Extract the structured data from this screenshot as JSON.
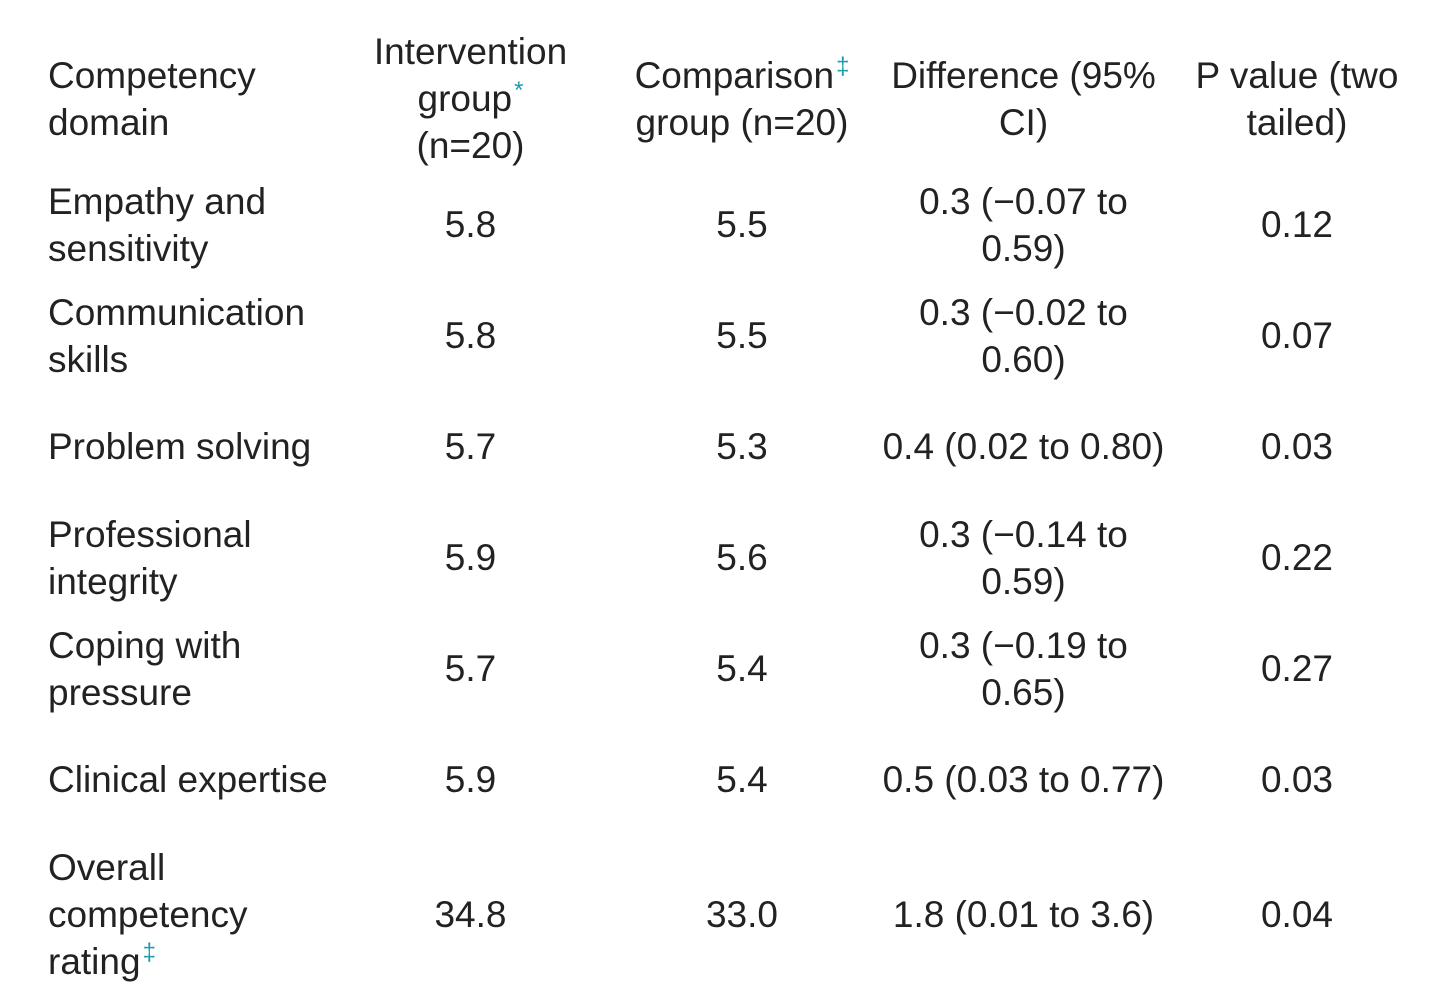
{
  "table": {
    "headers": [
      {
        "label": "Competency domain",
        "footnote": ""
      },
      {
        "label": "Intervention group",
        "footnote": "*",
        "suffix": "(n=20)"
      },
      {
        "label": "Comparison",
        "footnote": "‡",
        "suffix": "group (n=20)"
      },
      {
        "label": "Difference (95% CI)",
        "footnote": ""
      },
      {
        "label": "P value (two tailed)",
        "footnote": ""
      }
    ],
    "rows": [
      {
        "domain": "Empathy and sensitivity",
        "footnote": "",
        "intervention": "5.8",
        "comparison": "5.5",
        "difference": "0.3 (−0.07 to 0.59)",
        "p_value": "0.12"
      },
      {
        "domain": "Communication skills",
        "footnote": "",
        "intervention": "5.8",
        "comparison": "5.5",
        "difference": "0.3 (−0.02 to 0.60)",
        "p_value": "0.07"
      },
      {
        "domain": "Problem solving",
        "footnote": "",
        "intervention": "5.7",
        "comparison": "5.3",
        "difference": "0.4 (0.02 to 0.80)",
        "p_value": "0.03"
      },
      {
        "domain": "Professional integrity",
        "footnote": "",
        "intervention": "5.9",
        "comparison": "5.6",
        "difference": "0.3 (−0.14 to 0.59)",
        "p_value": "0.22"
      },
      {
        "domain": "Coping with pressure",
        "footnote": "",
        "intervention": "5.7",
        "comparison": "5.4",
        "difference": "0.3 (−0.19 to 0.65)",
        "p_value": "0.27"
      },
      {
        "domain": "Clinical expertise",
        "footnote": "",
        "intervention": "5.9",
        "comparison": "5.4",
        "difference": "0.5 (0.03 to 0.77)",
        "p_value": "0.03"
      },
      {
        "domain": "Overall competency rating",
        "footnote": "‡",
        "intervention": "34.8",
        "comparison": "33.0",
        "difference": "1.8 (0.01 to 3.6)",
        "p_value": "0.04"
      }
    ]
  },
  "colors": {
    "text": "#222222",
    "footnote": "#1a9bb0",
    "background": "#ffffff"
  }
}
